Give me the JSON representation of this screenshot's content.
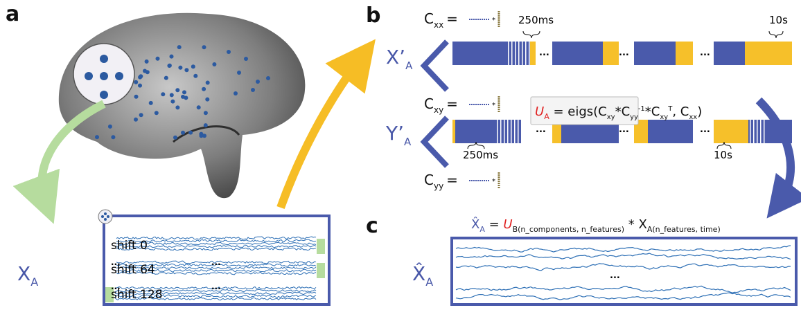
{
  "panels": {
    "a": {
      "label": "a",
      "matrix": {
        "symbol": "X",
        "subscript": "A"
      },
      "rows": [
        "shift 0",
        "shift 64",
        "shift 128"
      ],
      "ellipsis": "..."
    },
    "b": {
      "label": "b",
      "cxx": {
        "symbol": "C",
        "subscript": "xx",
        "equals": "="
      },
      "cxy": {
        "symbol": "C",
        "subscript": "xy",
        "equals": "="
      },
      "cyy": {
        "symbol": "C",
        "subscript": "yy",
        "equals": "="
      },
      "x_prime": {
        "symbol": "X’",
        "subscript": "A"
      },
      "y_prime": {
        "symbol": "Y’",
        "subscript": "A"
      },
      "x_window": "250ms",
      "x_span": "10s",
      "y_window": "250ms",
      "y_span": "10s",
      "ellipsis": "...",
      "formula": [
        "U",
        "A",
        " = eigs(C",
        "xy",
        "*C",
        "yy",
        "-1",
        "*C",
        "xy",
        "T",
        ", C",
        "xx",
        ")"
      ]
    },
    "c": {
      "label": "c",
      "formula": [
        "X̂",
        "A",
        " = ",
        "U",
        "B(n_components, n_features)",
        " * X",
        "A(n_features, time)"
      ],
      "matrix": {
        "symbol": "X̂",
        "subscript": "A"
      },
      "ellipsis": "..."
    }
  }
}
